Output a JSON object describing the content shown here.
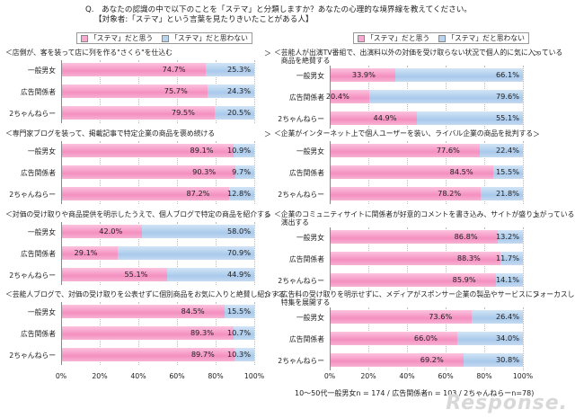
{
  "question": {
    "line1": "Q.　あなたの認識の中で以下のことを「ステマ」と分類しますか？あなたの心理的な境界線を教えてください。",
    "line2": "【対象者:「ステマ」という言葉を見たりきいたことがある人】"
  },
  "legend": {
    "items": [
      "「ステマ」だと思う",
      "「ステマ」だと思わない"
    ],
    "colors": [
      "#f48fc0",
      "#a9c9eb"
    ]
  },
  "axis_ticks": [
    "0%",
    "20%",
    "40%",
    "60%",
    "80%",
    "100%"
  ],
  "footnote": "10～50代一般男女n = 174 / 広告関係者n = 103 / 2ちゃんねらーn=78)",
  "watermark": "Response.",
  "chart_data": [
    {
      "type": "bar",
      "stacked": true,
      "orientation": "horizontal",
      "title": "＜店側が、客を装って店に列を作る\"さくら\"を仕込む",
      "categories": [
        "一般男女",
        "広告関係者",
        "2ちゃんねらー"
      ],
      "series": [
        {
          "name": "「ステマ」だと思う",
          "values": [
            74.7,
            75.7,
            79.5
          ]
        },
        {
          "name": "「ステマ」だと思わない",
          "values": [
            25.3,
            24.3,
            20.5
          ]
        }
      ],
      "xlim": [
        0,
        100
      ]
    },
    {
      "type": "bar",
      "stacked": true,
      "orientation": "horizontal",
      "title": "＜専門家ブログを装って、掲載記事で特定企業の商品を褒め続ける",
      "categories": [
        "一般男女",
        "広告関係者",
        "2ちゃんねらー"
      ],
      "series": [
        {
          "name": "「ステマ」だと思う",
          "values": [
            89.1,
            90.3,
            87.2
          ]
        },
        {
          "name": "「ステマ」だと思わない",
          "values": [
            10.9,
            9.7,
            12.8
          ]
        }
      ],
      "xlim": [
        0,
        100
      ]
    },
    {
      "type": "bar",
      "stacked": true,
      "orientation": "horizontal",
      "title": "＜対価の受け取りや商品提供を明示したうえで、個人ブログで特定の商品を紹介する",
      "categories": [
        "一般男女",
        "広告関係者",
        "2ちゃんねらー"
      ],
      "series": [
        {
          "name": "「ステマ」だと思う",
          "values": [
            42.0,
            29.1,
            55.1
          ]
        },
        {
          "name": "「ステマ」だと思わない",
          "values": [
            58.0,
            70.9,
            44.9
          ]
        }
      ],
      "xlim": [
        0,
        100
      ]
    },
    {
      "type": "bar",
      "stacked": true,
      "orientation": "horizontal",
      "title": "＜芸能人ブログで、対価の受け取りを公表せずに個別商品をお気に入りと絶賛し紹介する",
      "categories": [
        "一般男女",
        "広告関係者",
        "2ちゃんねらー"
      ],
      "series": [
        {
          "name": "「ステマ」だと思う",
          "values": [
            84.5,
            89.3,
            89.7
          ]
        },
        {
          "name": "「ステマ」だと思わない",
          "values": [
            15.5,
            10.7,
            10.3
          ]
        }
      ],
      "xlim": [
        0,
        100
      ]
    },
    {
      "type": "bar",
      "stacked": true,
      "orientation": "horizontal",
      "title": "＜芸能人が出演TV番組で、出演料以外の対価を受け取らない状況で個人的に気に入っている\n　商品を絶賛する",
      "categories": [
        "一般男女",
        "広告関係者",
        "2ちゃんねらー"
      ],
      "series": [
        {
          "name": "「ステマ」だと思う",
          "values": [
            33.9,
            20.4,
            44.9
          ]
        },
        {
          "name": "「ステマ」だと思わない",
          "values": [
            66.1,
            79.6,
            55.1
          ]
        }
      ],
      "xlim": [
        0,
        100
      ]
    },
    {
      "type": "bar",
      "stacked": true,
      "orientation": "horizontal",
      "title": "＜企業がインターネット上で個人ユーザーを装い、ライバル企業の商品を批判する",
      "categories": [
        "一般男女",
        "広告関係者",
        "2ちゃんねらー"
      ],
      "series": [
        {
          "name": "「ステマ」だと思う",
          "values": [
            77.6,
            84.5,
            78.2
          ]
        },
        {
          "name": "「ステマ」だと思わない",
          "values": [
            22.4,
            15.5,
            21.8
          ]
        }
      ],
      "xlim": [
        0,
        100
      ]
    },
    {
      "type": "bar",
      "stacked": true,
      "orientation": "horizontal",
      "title": "＜企業のコミュニティサイトに関係者が好意的コメントを書き込み、サイトが盛り上がっているように\n　演出する",
      "categories": [
        "一般男女",
        "広告関係者",
        "2ちゃんねらー"
      ],
      "series": [
        {
          "name": "「ステマ」だと思う",
          "values": [
            86.8,
            88.3,
            85.9
          ]
        },
        {
          "name": "「ステマ」だと思わない",
          "values": [
            13.2,
            11.7,
            14.1
          ]
        }
      ],
      "xlim": [
        0,
        100
      ]
    },
    {
      "type": "bar",
      "stacked": true,
      "orientation": "horizontal",
      "title": "＜広告料の受け取りを明示せずに、メディアがスポンサー企業の製品やサービスにフォーカスした\n　特集を展開する",
      "categories": [
        "一般男女",
        "広告関係者",
        "2ちゃんねらー"
      ],
      "series": [
        {
          "name": "「ステマ」だと思う",
          "values": [
            73.6,
            66.0,
            69.2
          ]
        },
        {
          "name": "「ステマ」だと思わない",
          "values": [
            26.4,
            34.0,
            30.8
          ]
        }
      ],
      "xlim": [
        0,
        100
      ]
    }
  ]
}
